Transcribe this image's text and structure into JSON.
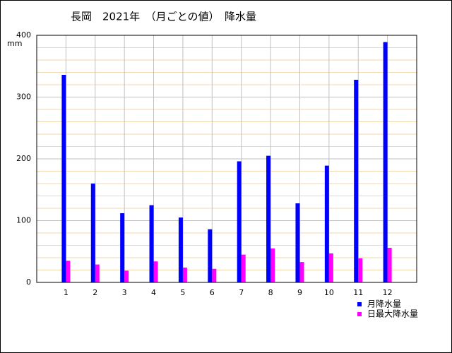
{
  "chart_data": {
    "type": "bar",
    "title": "長岡　2021年　（月ごとの値）　降水量",
    "y_label": "mm",
    "categories": [
      "1",
      "2",
      "3",
      "4",
      "5",
      "6",
      "7",
      "8",
      "9",
      "10",
      "11",
      "12"
    ],
    "series": [
      {
        "name": "月降水量",
        "color": "#0000ff",
        "values": [
          336,
          160,
          112,
          125,
          105,
          86,
          196,
          205,
          128,
          189,
          328,
          389
        ]
      },
      {
        "name": "日最大降水量",
        "color": "#ff00ff",
        "values": [
          35,
          29,
          19,
          34,
          24,
          22,
          45,
          55,
          33,
          47,
          39,
          56
        ]
      }
    ],
    "ylim": [
      0,
      400
    ],
    "yticks": [
      0,
      100,
      200,
      300,
      400
    ],
    "grid": true,
    "legend": "bottom-right"
  }
}
